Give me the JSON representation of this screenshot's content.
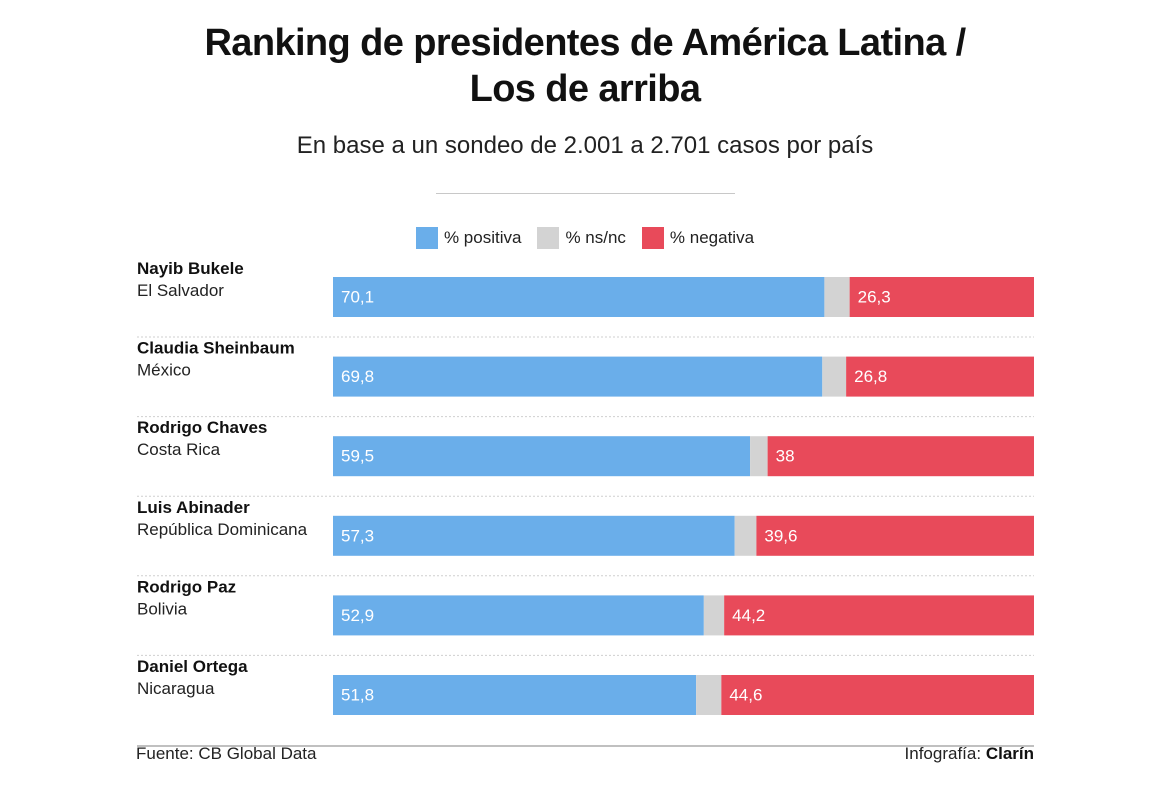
{
  "header": {
    "title_line1": "Ranking de presidentes de América Latina /",
    "title_line2": "Los de arriba",
    "subtitle": "En base a un sondeo de 2.001 a 2.701 casos por país"
  },
  "legend": {
    "positive": "% positiva",
    "ns": "% ns/nc",
    "negative": "% negativa"
  },
  "colors": {
    "positive": "#6aaeea",
    "ns": "#d3d3d3",
    "negative": "#e84a5a"
  },
  "chart_data": {
    "type": "bar",
    "orientation": "horizontal",
    "stacked": true,
    "categories": [
      {
        "name": "Nayib Bukele",
        "country": "El Salvador"
      },
      {
        "name": "Claudia Sheinbaum",
        "country": "México"
      },
      {
        "name": "Rodrigo Chaves",
        "country": "Costa Rica"
      },
      {
        "name": "Luis Abinader",
        "country": "República Dominicana"
      },
      {
        "name": "Rodrigo Paz",
        "country": "Bolivia"
      },
      {
        "name": "Daniel Ortega",
        "country": "Nicaragua"
      }
    ],
    "series": [
      {
        "name": "% positiva",
        "values": [
          70.1,
          69.8,
          59.5,
          57.3,
          52.9,
          51.8
        ],
        "labels": [
          "70,1",
          "69,8",
          "59,5",
          "57,3",
          "52,9",
          "51,8"
        ]
      },
      {
        "name": "% ns/nc",
        "values": [
          3.6,
          3.4,
          2.5,
          3.1,
          2.9,
          3.6
        ]
      },
      {
        "name": "% negativa",
        "values": [
          26.3,
          26.8,
          38,
          39.6,
          44.2,
          44.6
        ],
        "labels": [
          "26,3",
          "26,8",
          "38",
          "39,6",
          "44,2",
          "44,6"
        ]
      }
    ],
    "xlim": [
      0,
      100
    ]
  },
  "footer": {
    "source": "Fuente: CB Global Data",
    "credit_prefix": "Infografía: ",
    "credit_brand": "Clarín"
  }
}
